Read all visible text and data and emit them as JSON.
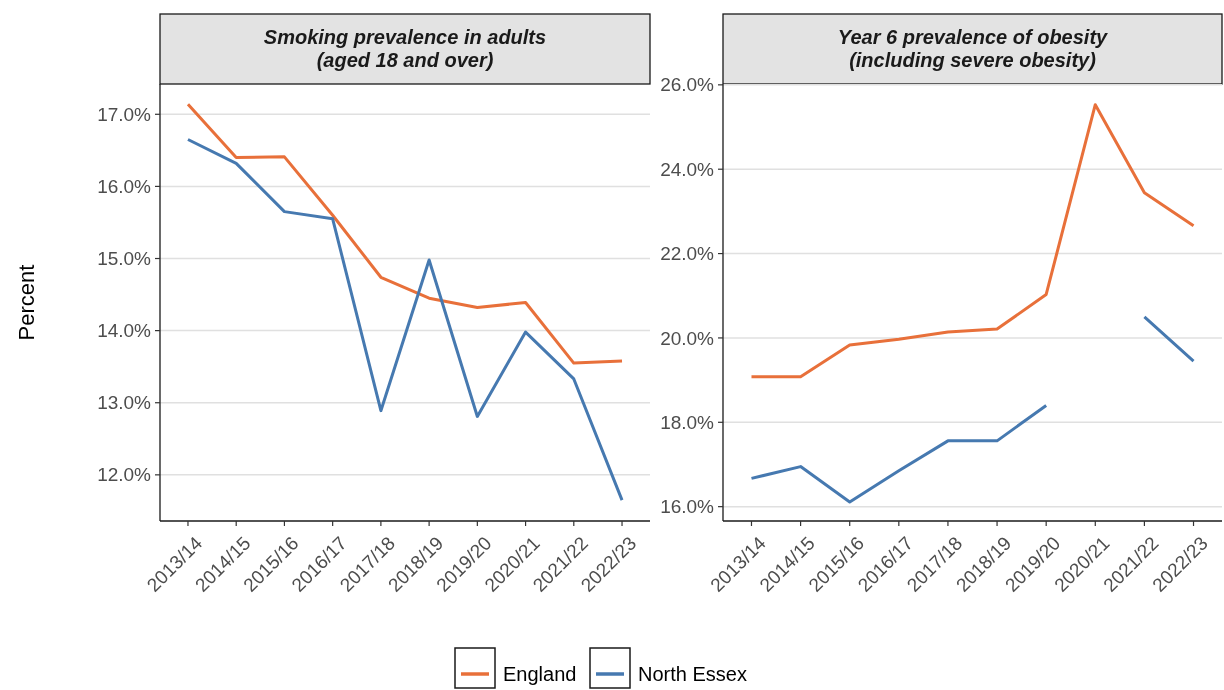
{
  "chart_data": [
    {
      "type": "line",
      "title": "Smoking prevalence in adults\n(aged 18 and over)",
      "ylabel": "Percent",
      "categories": [
        "2013/14",
        "2014/15",
        "2015/16",
        "2016/17",
        "2017/18",
        "2018/19",
        "2019/20",
        "2020/21",
        "2021/22",
        "2022/23"
      ],
      "ylim": [
        11.36,
        17.42
      ],
      "yticks": [
        {
          "value": 12,
          "label": "12.0%"
        },
        {
          "value": 13,
          "label": "13.0%"
        },
        {
          "value": 14,
          "label": "14.0%"
        },
        {
          "value": 15,
          "label": "15.0%"
        },
        {
          "value": 16,
          "label": "16.0%"
        },
        {
          "value": 17,
          "label": "17.0%"
        }
      ],
      "grid": "y",
      "legend": "bottom",
      "line_style": "solid",
      "marker": "none",
      "series": [
        {
          "name": "England",
          "color": "#e8703a",
          "values": [
            17.14,
            16.4,
            16.41,
            15.6,
            14.74,
            14.45,
            14.32,
            14.39,
            13.55,
            13.58
          ]
        },
        {
          "name": "North Essex",
          "color": "#4679b0",
          "values": [
            16.65,
            16.32,
            15.65,
            15.55,
            12.89,
            14.98,
            12.81,
            13.98,
            13.33,
            11.65
          ]
        }
      ]
    },
    {
      "type": "line",
      "title": "Year 6 prevalence of obesity\n(including severe obesity)",
      "categories": [
        "2013/14",
        "2014/15",
        "2015/16",
        "2016/17",
        "2017/18",
        "2018/19",
        "2019/20",
        "2020/21",
        "2021/22",
        "2022/23"
      ],
      "ylim": [
        15.66,
        26.02
      ],
      "yticks": [
        {
          "value": 16,
          "label": "16.0%"
        },
        {
          "value": 18,
          "label": "18.0%"
        },
        {
          "value": 20,
          "label": "20.0%"
        },
        {
          "value": 22,
          "label": "22.0%"
        },
        {
          "value": 24,
          "label": "24.0%"
        },
        {
          "value": 26,
          "label": "26.0%"
        }
      ],
      "grid": "y",
      "line_style": "solid",
      "marker": "none",
      "series": [
        {
          "color": "#e8703a",
          "values": [
            19.08,
            19.08,
            19.83,
            19.97,
            20.14,
            20.21,
            21.03,
            25.53,
            23.44,
            22.66
          ]
        },
        {
          "color": "#4679b0",
          "values": [
            16.67,
            16.95,
            16.11,
            16.85,
            17.56,
            17.56,
            18.4,
            null,
            20.5,
            19.45
          ]
        }
      ]
    }
  ]
}
